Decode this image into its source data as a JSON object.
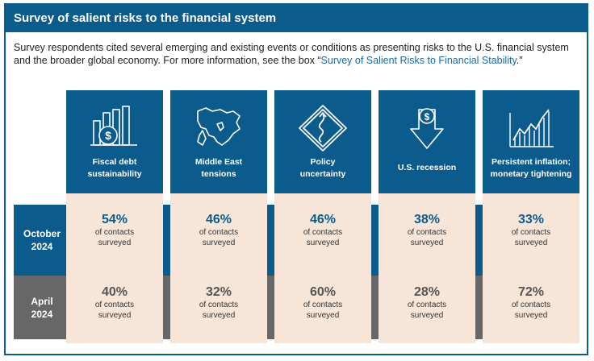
{
  "title": "Survey of salient risks to the financial system",
  "intro": {
    "text": "Survey respondents cited several emerging and existing events or conditions as presenting risks to the U.S. financial system and the broader global economy. For more information, see the box “",
    "link": "Survey of Salient Risks to Financial Stability",
    "end": ".”"
  },
  "rows": [
    {
      "label_1": "October",
      "label_2": "2024"
    },
    {
      "label_1": "April",
      "label_2": "2024"
    }
  ],
  "columns": [
    {
      "icon": "debt-chart-icon",
      "label_1": "Fiscal debt",
      "label_2": "sustainability",
      "oct_pct": "54%",
      "apr_pct": "40%"
    },
    {
      "icon": "middle-east-map-icon",
      "label_1": "Middle East",
      "label_2": "tensions",
      "oct_pct": "46%",
      "apr_pct": "32%"
    },
    {
      "icon": "winding-road-sign-icon",
      "label_1": "Policy",
      "label_2": "uncertainty",
      "oct_pct": "46%",
      "apr_pct": "60%"
    },
    {
      "icon": "downward-dollar-arrow-icon",
      "label_1": "U.S. recession",
      "label_2": "",
      "oct_pct": "38%",
      "apr_pct": "28%"
    },
    {
      "icon": "rising-chart-icon",
      "label_1": "Persistent inflation;",
      "label_2": "monetary tightening",
      "oct_pct": "33%",
      "apr_pct": "72%"
    }
  ],
  "cell_text_1": "of contacts",
  "cell_text_2": "surveyed",
  "colors": {
    "blue": "#0b5b8c",
    "gray": "#676767",
    "peach": "#f7e6d8"
  }
}
